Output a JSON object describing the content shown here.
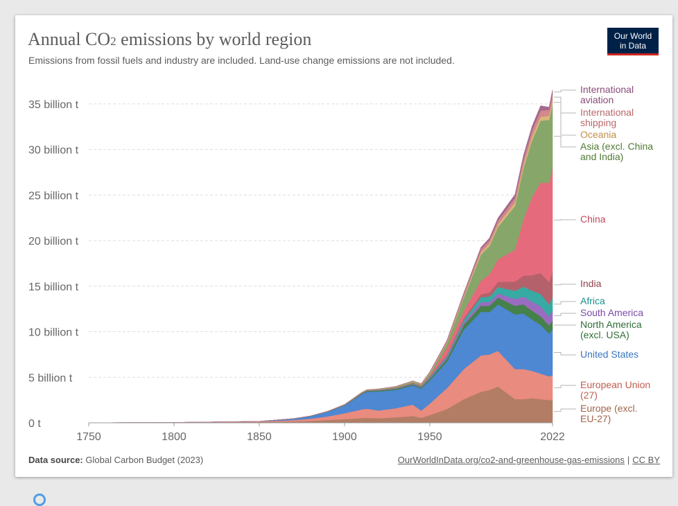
{
  "header": {
    "title_main": "Annual CO",
    "title_sub": "2",
    "title_rest": " emissions by world region",
    "subtitle": "Emissions from fossil fuels and industry are included. Land-use change emissions are not included."
  },
  "logo": {
    "line1": "Our World",
    "line2": "in Data"
  },
  "footer": {
    "source_label": "Data source:",
    "source_text": "Global Carbon Budget (2023)",
    "link": "OurWorldInData.org/co2-and-greenhouse-gas-emissions",
    "separator": "|",
    "license": "CC BY"
  },
  "chart_data": {
    "type": "area",
    "stacked": true,
    "title": "Annual CO2 emissions by world region",
    "unit": "billion t",
    "x": [
      1750,
      1800,
      1850,
      1870,
      1880,
      1890,
      1900,
      1910,
      1913,
      1920,
      1930,
      1940,
      1945,
      1950,
      1960,
      1970,
      1980,
      1985,
      1990,
      2000,
      2005,
      2010,
      2015,
      2020,
      2022
    ],
    "x_ticks": [
      "1750",
      "1800",
      "1850",
      "1900",
      "1950",
      "2022"
    ],
    "x_tick_values": [
      1750,
      1800,
      1850,
      1900,
      1950,
      2022
    ],
    "xlim": [
      1750,
      2022
    ],
    "y_ticks": [
      "0 t",
      "5 billion t",
      "10 billion t",
      "15 billion t",
      "20 billion t",
      "25 billion t",
      "30 billion t",
      "35 billion t"
    ],
    "y_tick_values": [
      0,
      5,
      10,
      15,
      20,
      25,
      30,
      35
    ],
    "ylim": [
      0,
      37.5
    ],
    "series": [
      {
        "name": "Europe (excl. EU-27)",
        "color": "#b27d64",
        "label_color": "#a0644a",
        "values": [
          0.01,
          0.03,
          0.09,
          0.15,
          0.2,
          0.3,
          0.4,
          0.52,
          0.55,
          0.5,
          0.6,
          0.75,
          0.55,
          0.85,
          1.5,
          2.6,
          3.4,
          3.6,
          4.0,
          2.6,
          2.6,
          2.7,
          2.6,
          2.5,
          2.5
        ]
      },
      {
        "name": "European Union (27)",
        "color": "#e98b7e",
        "label_color": "#c05c4e",
        "values": [
          0.0,
          0.01,
          0.05,
          0.15,
          0.25,
          0.4,
          0.65,
          0.95,
          1.0,
          0.85,
          1.0,
          1.25,
          0.8,
          1.25,
          2.3,
          3.3,
          4.0,
          3.9,
          3.9,
          3.3,
          3.3,
          3.0,
          2.8,
          2.6,
          2.7
        ]
      },
      {
        "name": "United States",
        "color": "#4e87d2",
        "label_color": "#3a74c0",
        "values": [
          0.0,
          0.0,
          0.02,
          0.15,
          0.28,
          0.5,
          0.85,
          1.65,
          1.85,
          2.1,
          2.0,
          2.1,
          2.4,
          2.55,
          2.9,
          4.35,
          4.8,
          4.65,
          5.1,
          6.0,
          6.1,
          5.65,
          5.35,
          4.7,
          5.05
        ]
      },
      {
        "name": "North America (excl. USA)",
        "color": "#45814a",
        "label_color": "#2f6e36",
        "values": [
          0.0,
          0.0,
          0.0,
          0.01,
          0.02,
          0.03,
          0.05,
          0.08,
          0.09,
          0.1,
          0.12,
          0.12,
          0.15,
          0.18,
          0.3,
          0.5,
          0.65,
          0.7,
          0.75,
          0.95,
          1.0,
          0.95,
          0.95,
          0.9,
          0.95
        ]
      },
      {
        "name": "South America",
        "color": "#9a6cc0",
        "label_color": "#7b4aa6",
        "values": [
          0.0,
          0.0,
          0.0,
          0.0,
          0.0,
          0.0,
          0.01,
          0.02,
          0.02,
          0.03,
          0.04,
          0.05,
          0.06,
          0.08,
          0.15,
          0.25,
          0.4,
          0.4,
          0.45,
          0.75,
          0.85,
          1.0,
          1.1,
          1.0,
          1.1
        ]
      },
      {
        "name": "Africa",
        "color": "#38aaa4",
        "label_color": "#18918a",
        "values": [
          0.0,
          0.0,
          0.0,
          0.0,
          0.0,
          0.0,
          0.0,
          0.01,
          0.01,
          0.02,
          0.03,
          0.04,
          0.05,
          0.1,
          0.15,
          0.3,
          0.55,
          0.6,
          0.7,
          0.9,
          1.1,
          1.2,
          1.35,
          1.3,
          1.45
        ]
      },
      {
        "name": "India",
        "color": "#b5616b",
        "label_color": "#8f3f4a",
        "values": [
          0.0,
          0.0,
          0.0,
          0.0,
          0.0,
          0.01,
          0.02,
          0.03,
          0.03,
          0.03,
          0.05,
          0.06,
          0.07,
          0.07,
          0.12,
          0.2,
          0.3,
          0.45,
          0.58,
          1.0,
          1.2,
          1.7,
          2.3,
          2.45,
          2.8
        ]
      },
      {
        "name": "China",
        "color": "#e56b7c",
        "label_color": "#c24758",
        "values": [
          0.0,
          0.0,
          0.0,
          0.0,
          0.0,
          0.0,
          0.0,
          0.01,
          0.01,
          0.01,
          0.02,
          0.03,
          0.04,
          0.08,
          0.8,
          0.8,
          1.5,
          2.0,
          2.45,
          3.5,
          6.2,
          8.6,
          9.9,
          10.9,
          11.4
        ]
      },
      {
        "name": "Asia (excl. China and India)",
        "color": "#86a66a",
        "label_color": "#4f7a34",
        "values": [
          0.0,
          0.0,
          0.0,
          0.0,
          0.0,
          0.01,
          0.02,
          0.04,
          0.05,
          0.06,
          0.09,
          0.15,
          0.12,
          0.25,
          0.5,
          1.45,
          2.85,
          3.1,
          3.55,
          4.8,
          5.6,
          6.2,
          6.8,
          6.9,
          7.0
        ]
      },
      {
        "name": "Oceania",
        "color": "#d9b77a",
        "label_color": "#c08f4a",
        "values": [
          0.0,
          0.0,
          0.0,
          0.0,
          0.01,
          0.01,
          0.01,
          0.02,
          0.02,
          0.02,
          0.03,
          0.04,
          0.04,
          0.05,
          0.09,
          0.15,
          0.25,
          0.28,
          0.3,
          0.38,
          0.42,
          0.45,
          0.44,
          0.44,
          0.44
        ]
      },
      {
        "name": "International shipping",
        "color": "#d28a8a",
        "label_color": "#b8676a",
        "values": [
          0.0,
          0.0,
          0.0,
          0.0,
          0.0,
          0.0,
          0.0,
          0.0,
          0.0,
          0.0,
          0.02,
          0.02,
          0.02,
          0.1,
          0.15,
          0.25,
          0.35,
          0.35,
          0.4,
          0.5,
          0.58,
          0.65,
          0.68,
          0.65,
          0.7
        ]
      },
      {
        "name": "International aviation",
        "color": "#a5698f",
        "label_color": "#8a4a7a",
        "values": [
          0.0,
          0.0,
          0.0,
          0.0,
          0.0,
          0.0,
          0.0,
          0.0,
          0.0,
          0.0,
          0.0,
          0.0,
          0.0,
          0.02,
          0.06,
          0.12,
          0.2,
          0.24,
          0.3,
          0.38,
          0.42,
          0.45,
          0.52,
          0.3,
          0.45
        ]
      }
    ]
  }
}
